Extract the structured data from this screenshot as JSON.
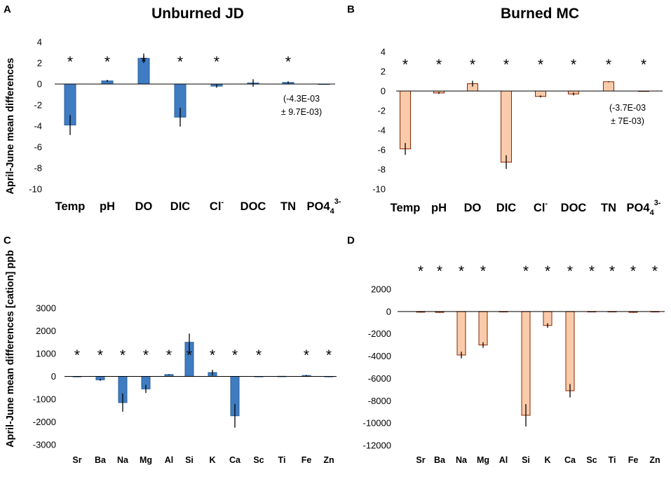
{
  "figure": {
    "ylabel_top": "April-June mean differences",
    "ylabel_bottom": "April-June mean differences [cation] ppb"
  },
  "colors": {
    "blue_fill": "#3F7CC2",
    "blue_stroke": "#2A5E9A",
    "peach_fill": "#F9CBAA",
    "peach_stroke": "#8B2500"
  },
  "chart_data": [
    {
      "id": "A",
      "letter": "A",
      "type": "bar",
      "title": "Unburned JD",
      "ylim": [
        -10,
        4
      ],
      "ticks": [
        "4",
        "2",
        "0",
        "-2",
        "-4",
        "-6",
        "-8",
        "-10"
      ],
      "tick_values": [
        4,
        2,
        0,
        -2,
        -4,
        -6,
        -8,
        -10
      ],
      "categories": [
        "Temp",
        "pH",
        "DO",
        "DIC",
        "Cl",
        "DOC",
        "TN",
        "PO4"
      ],
      "category_sups": [
        "",
        "",
        "",
        "",
        "-",
        "",
        "",
        "3-"
      ],
      "category_subs": [
        "",
        "",
        "",
        "",
        "",
        "",
        "",
        "4"
      ],
      "values": [
        -3.9,
        0.3,
        2.45,
        -3.15,
        -0.2,
        0.1,
        0.15,
        -0.0043
      ],
      "errors": [
        0.95,
        0.1,
        0.45,
        0.9,
        0.15,
        0.35,
        0.1,
        0.0097
      ],
      "significant": [
        true,
        true,
        true,
        true,
        true,
        false,
        true,
        false
      ],
      "annotation": [
        "(-4.3E-03",
        "± 9.7E-03)"
      ],
      "style": "blue"
    },
    {
      "id": "B",
      "letter": "B",
      "type": "bar",
      "title": "Burned MC",
      "ylim": [
        -10,
        4
      ],
      "ticks": [
        "4",
        "2",
        "0",
        "-2",
        "-4",
        "-6",
        "-8",
        "-10"
      ],
      "tick_values": [
        4,
        2,
        0,
        -2,
        -4,
        -6,
        -8,
        -10
      ],
      "categories": [
        "Temp",
        "pH",
        "DO",
        "DIC",
        "Cl",
        "DOC",
        "TN",
        "PO4"
      ],
      "category_sups": [
        "",
        "",
        "",
        "",
        "-",
        "",
        "",
        "3-"
      ],
      "category_subs": [
        "",
        "",
        "",
        "",
        "",
        "",
        "",
        "4"
      ],
      "values": [
        -5.9,
        -0.2,
        0.75,
        -7.25,
        -0.55,
        -0.3,
        0.95,
        -0.0037
      ],
      "errors": [
        0.6,
        0.1,
        0.3,
        0.7,
        0.1,
        0.15,
        0.05,
        0.007
      ],
      "significant": [
        true,
        true,
        true,
        true,
        true,
        true,
        true,
        true
      ],
      "annotation": [
        "(-3.7E-03",
        "± 7E-03)"
      ],
      "style": "peach"
    },
    {
      "id": "C",
      "letter": "C",
      "type": "bar",
      "title": "",
      "ylim": [
        -3000,
        3000
      ],
      "ticks": [
        "3000",
        "2000",
        "1000",
        "0",
        "-1000",
        "-2000",
        "-3000"
      ],
      "tick_values": [
        3000,
        2000,
        1000,
        0,
        -1000,
        -2000,
        -3000
      ],
      "categories": [
        "Sr",
        "Ba",
        "Na",
        "Mg",
        "Al",
        "Si",
        "K",
        "Ca",
        "Sc",
        "Ti",
        "Fe",
        "Zn"
      ],
      "values": [
        -20,
        -150,
        -1150,
        -550,
        80,
        1500,
        170,
        -1730,
        -10,
        5,
        40,
        -15
      ],
      "errors": [
        10,
        40,
        400,
        180,
        20,
        380,
        120,
        520,
        5,
        5,
        25,
        8
      ],
      "significant": [
        true,
        true,
        true,
        true,
        true,
        true,
        true,
        true,
        true,
        false,
        true,
        true
      ],
      "style": "blue"
    },
    {
      "id": "D",
      "letter": "D",
      "type": "bar",
      "title": "",
      "ylim": [
        -12000,
        2000
      ],
      "ticks": [
        "2000",
        "0",
        "-2000",
        "-4000",
        "-6000",
        "-8000",
        "-10000",
        "-12000"
      ],
      "tick_values": [
        2000,
        0,
        -2000,
        -4000,
        -6000,
        -8000,
        -10000,
        -12000
      ],
      "categories": [
        "Sr",
        "Ba",
        "Na",
        "Mg",
        "Al",
        "Si",
        "K",
        "Ca",
        "Sc",
        "Ti",
        "Fe",
        "Zn"
      ],
      "values": [
        -60,
        -80,
        -3900,
        -3000,
        -20,
        -9300,
        -1250,
        -7100,
        -20,
        -30,
        -80,
        -40
      ],
      "errors": [
        20,
        20,
        300,
        250,
        10,
        1000,
        200,
        600,
        10,
        10,
        20,
        10
      ],
      "significant": [
        true,
        true,
        true,
        true,
        false,
        true,
        true,
        true,
        true,
        true,
        true,
        true
      ],
      "style": "peach"
    }
  ]
}
